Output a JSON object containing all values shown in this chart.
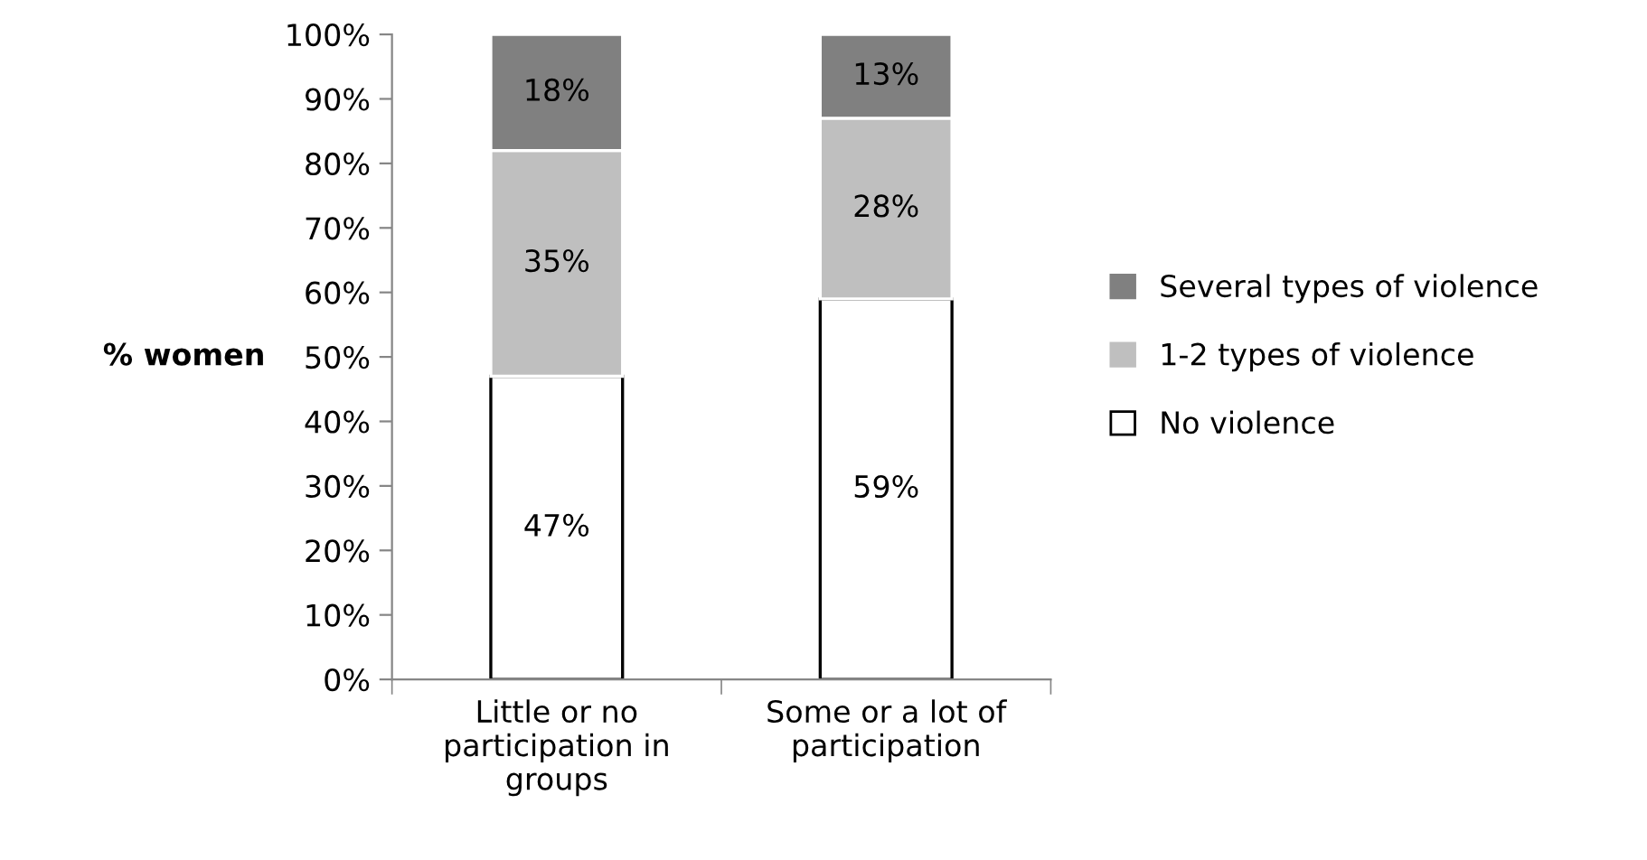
{
  "chart_data": {
    "type": "bar",
    "stacked": true,
    "ylabel": "% women",
    "categories": [
      "Little or no\nparticipation in\ngroups",
      "Some or a lot of\nparticipation"
    ],
    "series": [
      {
        "name": "No violence",
        "color": "#ffffff",
        "values": [
          47,
          59
        ],
        "value_labels": [
          "47%",
          "59%"
        ]
      },
      {
        "name": "1-2 types of violence",
        "color": "#bfbfbf",
        "values": [
          35,
          28
        ],
        "value_labels": [
          "35%",
          "28%"
        ]
      },
      {
        "name": "Several types of violence",
        "color": "#808080",
        "values": [
          18,
          13
        ],
        "value_labels": [
          "18%",
          "13%"
        ]
      }
    ],
    "ylim": [
      0,
      100
    ],
    "yticks": [
      {
        "value": 0,
        "label": "0%"
      },
      {
        "value": 10,
        "label": "10%"
      },
      {
        "value": 20,
        "label": "20%"
      },
      {
        "value": 30,
        "label": "30%"
      },
      {
        "value": 40,
        "label": "40%"
      },
      {
        "value": 50,
        "label": "50%"
      },
      {
        "value": 60,
        "label": "60%"
      },
      {
        "value": 70,
        "label": "70%"
      },
      {
        "value": 80,
        "label": "80%"
      },
      {
        "value": 90,
        "label": "90%"
      },
      {
        "value": 100,
        "label": "100%"
      }
    ],
    "legend": "right",
    "grid": false
  }
}
